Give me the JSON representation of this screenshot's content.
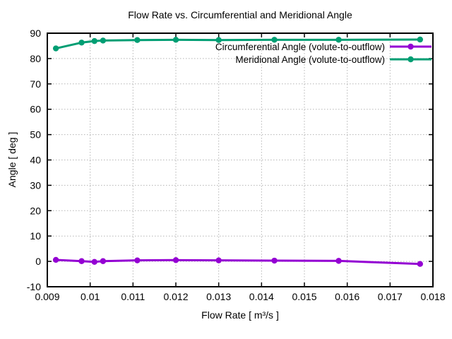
{
  "chart_data": {
    "type": "line",
    "title": "Flow Rate vs. Circumferential and Meridional Angle",
    "xlabel": "Flow Rate [ m³/s ]",
    "ylabel": "Angle [ deg ]",
    "xlim": [
      0.009,
      0.018
    ],
    "ylim": [
      -10,
      90
    ],
    "grid": true,
    "legend_position": "top-right-inside",
    "xticks": {
      "values": [
        0.009,
        0.01,
        0.011,
        0.012,
        0.013,
        0.014,
        0.015,
        0.016,
        0.017,
        0.018
      ],
      "labels": [
        "0.009",
        "0.01",
        "0.011",
        "0.012",
        "0.013",
        "0.014",
        "0.015",
        "0.016",
        "0.017",
        "0.018"
      ]
    },
    "yticks": {
      "values": [
        -10,
        0,
        10,
        20,
        30,
        40,
        50,
        60,
        70,
        80,
        90
      ],
      "labels": [
        "-10",
        "0",
        "10",
        "20",
        "30",
        "40",
        "50",
        "60",
        "70",
        "80",
        "90"
      ]
    },
    "x": [
      0.0092,
      0.0098,
      0.0101,
      0.0103,
      0.0111,
      0.012,
      0.013,
      0.0143,
      0.0158,
      0.0177
    ],
    "series": [
      {
        "name": "Circumferential Angle (volute-to-outflow)",
        "color": "#9400D3",
        "marker": "circle",
        "values": [
          0.6,
          0.1,
          -0.2,
          0.1,
          0.4,
          0.5,
          0.4,
          0.3,
          0.2,
          -1.0
        ]
      },
      {
        "name": "Meridional Angle (volute-to-outflow)",
        "color": "#009E73",
        "marker": "circle",
        "values": [
          84.0,
          86.3,
          86.9,
          87.1,
          87.3,
          87.4,
          87.3,
          87.4,
          87.4,
          87.5
        ]
      }
    ],
    "frame_color": "#000000",
    "grid_color": "#b5b5b5"
  }
}
